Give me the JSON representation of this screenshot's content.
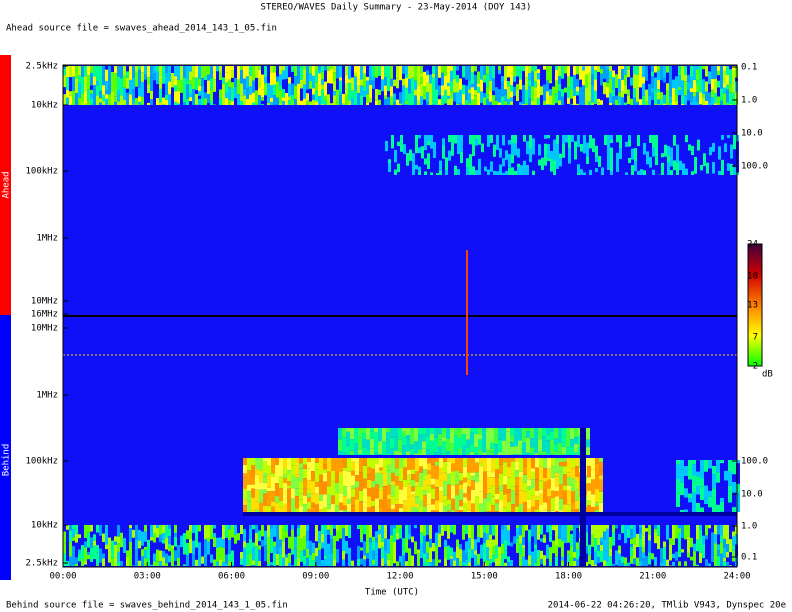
{
  "header": {
    "title": "STEREO/WAVES Daily Summary - 23-May-2014 (DOY 143)",
    "ahead_file": "Ahead source file = swaves_ahead_2014_143_1_05.fin"
  },
  "plot": {
    "ahead_label": "Ahead",
    "behind_label": "Behind",
    "x_label": "Time (UTC)",
    "x_ticks": [
      "00:00",
      "03:00",
      "06:00",
      "09:00",
      "12:00",
      "15:00",
      "18:00",
      "21:00",
      "24:00"
    ],
    "ahead_freq_ticks": [
      "2.5kHz",
      "10kHz",
      "100kHz",
      "1MHz",
      "10MHz",
      "16MHz"
    ],
    "behind_freq_ticks": [
      "10MHz",
      "1MHz",
      "100kHz",
      "10kHz",
      "2.5kHz"
    ],
    "ahead_right_ticks": [
      "0.1",
      "1.0",
      "10.0",
      "100.0"
    ],
    "behind_right_ticks": [
      "100.0",
      "10.0",
      "1.0",
      "0.1"
    ],
    "colorbar_ticks": [
      "24",
      "18",
      "13",
      "7",
      "2"
    ],
    "colorbar_unit": "dB"
  },
  "footer": {
    "behind_file": "Behind source file = swaves_behind_2014_143_1_05.fin",
    "stamp": "2014-06-22 04:26:20, TMlib V943, Dynspec 20e"
  }
}
